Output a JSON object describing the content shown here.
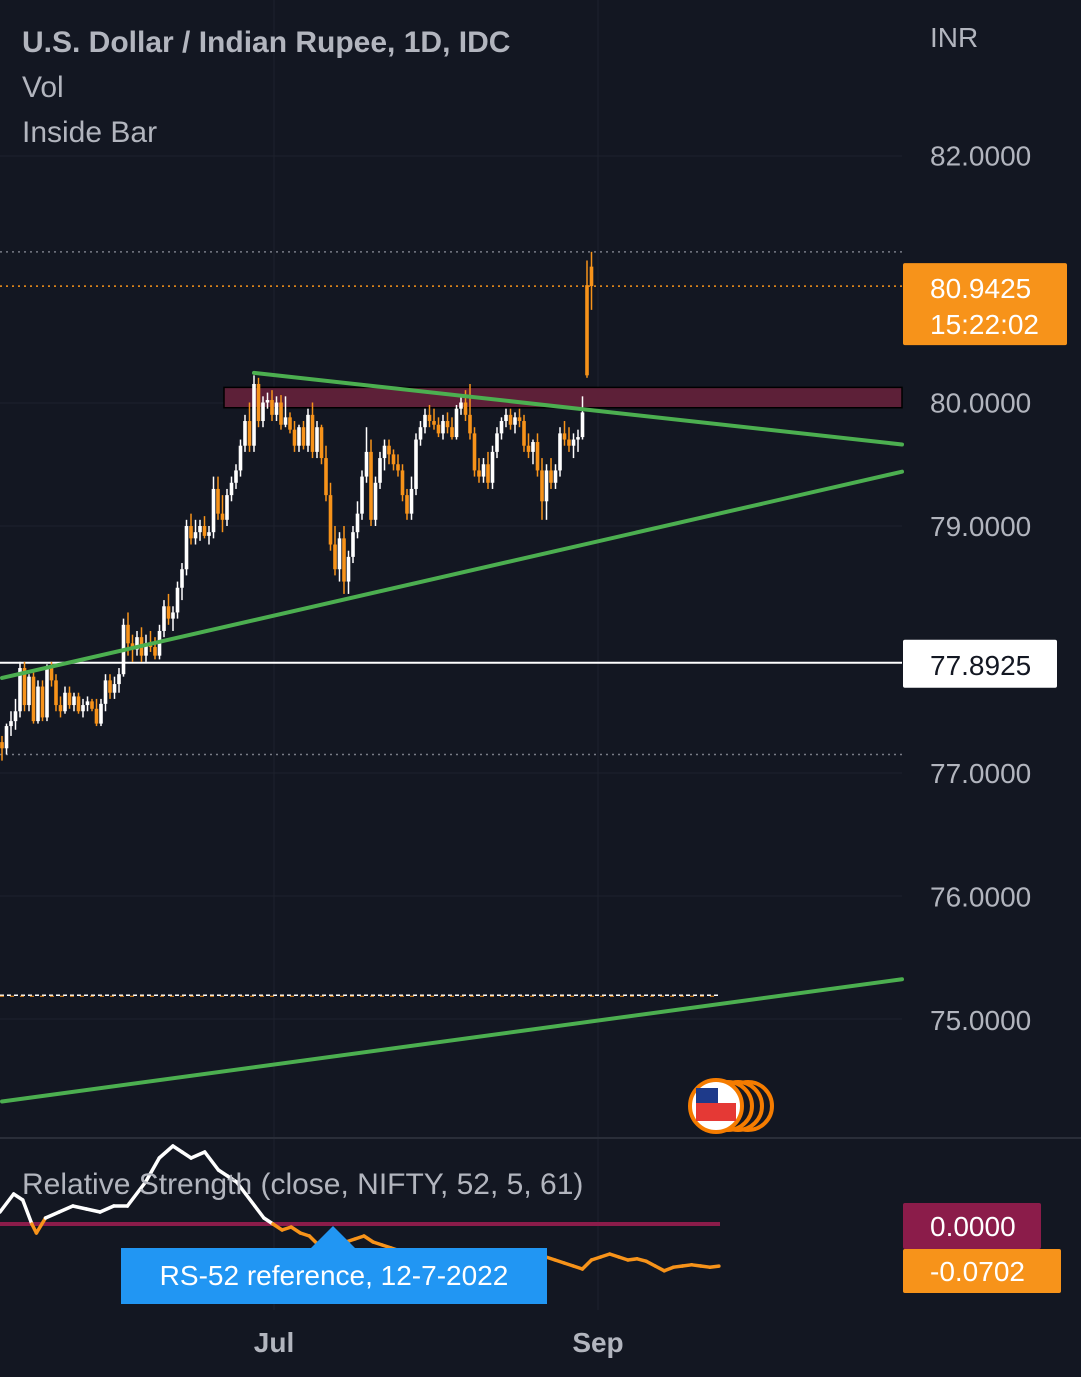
{
  "header": {
    "title": "U.S. Dollar / Indian Rupee, 1D, IDC",
    "vol_label": "Vol",
    "indicator_label": "Inside Bar",
    "currency": "INR"
  },
  "price_axis": {
    "ticks": [
      "82.0000",
      "80.0000",
      "79.0000",
      "77.0000",
      "76.0000",
      "75.0000"
    ],
    "last_price": "80.9425",
    "countdown": "15:22:02",
    "level_label": "77.8925"
  },
  "time_axis": {
    "ticks": [
      "Jul",
      "Sep"
    ]
  },
  "rs_panel": {
    "title": "Relative Strength (close, NIFTY, 52, 5, 61)",
    "zero_label": "0.0000",
    "value_label": "-0.0702",
    "tooltip": "RS-52 reference, 12-7-2022"
  },
  "colors": {
    "background": "#131722",
    "up_candle": "#ffffff",
    "down_candle": "#f7931a",
    "trendline": "#4caf50",
    "resistance_zone": "#5d2038",
    "rs_line_orange": "#f7931a",
    "rs_line_white": "#ffffff",
    "rs_zero_line": "#8b1c4a",
    "tooltip_bg": "#2196f3"
  },
  "chart_data": {
    "type": "candlestick",
    "symbol": "USDINR",
    "timeframe": "1D",
    "ylim": [
      74.0,
      83.3
    ],
    "levels": {
      "last_price": 80.9425,
      "horizontal_level": 77.8925,
      "resistance_zone": [
        79.99,
        80.09
      ],
      "dotted_high": 81.22,
      "dotted_low": 77.15,
      "dashed_level": 75.2
    },
    "trendlines": [
      {
        "name": "upper",
        "from": {
          "i": 56,
          "price": 80.24
        },
        "to": {
          "i": 148,
          "price": 79.66
        }
      },
      {
        "name": "lower",
        "from": {
          "i": 0,
          "price": 77.77
        },
        "to": {
          "i": 148,
          "price": 79.44
        }
      },
      {
        "name": "long",
        "from": {
          "i": 0,
          "price": 74.34
        },
        "to": {
          "i": 148,
          "price": 75.33
        }
      }
    ],
    "candles": [
      [
        77.25,
        77.3,
        77.1,
        77.2
      ],
      [
        77.2,
        77.4,
        77.15,
        77.38
      ],
      [
        77.38,
        77.5,
        77.3,
        77.42
      ],
      [
        77.42,
        77.6,
        77.35,
        77.5
      ],
      [
        77.5,
        77.9,
        77.45,
        77.85
      ],
      [
        77.85,
        77.9,
        77.5,
        77.55
      ],
      [
        77.55,
        77.8,
        77.5,
        77.78
      ],
      [
        77.78,
        77.82,
        77.4,
        77.42
      ],
      [
        77.42,
        77.75,
        77.4,
        77.7
      ],
      [
        77.7,
        77.75,
        77.42,
        77.45
      ],
      [
        77.45,
        77.88,
        77.42,
        77.85
      ],
      [
        77.85,
        77.9,
        77.7,
        77.75
      ],
      [
        77.75,
        77.8,
        77.5,
        77.55
      ],
      [
        77.55,
        77.62,
        77.45,
        77.5
      ],
      [
        77.5,
        77.7,
        77.48,
        77.65
      ],
      [
        77.65,
        77.7,
        77.52,
        77.55
      ],
      [
        77.55,
        77.65,
        77.5,
        77.62
      ],
      [
        77.62,
        77.65,
        77.48,
        77.5
      ],
      [
        77.5,
        77.6,
        77.45,
        77.55
      ],
      [
        77.55,
        77.62,
        77.5,
        77.58
      ],
      [
        77.58,
        77.6,
        77.5,
        77.52
      ],
      [
        77.52,
        77.6,
        77.38,
        77.4
      ],
      [
        77.4,
        77.6,
        77.38,
        77.56
      ],
      [
        77.56,
        77.8,
        77.5,
        77.75
      ],
      [
        77.75,
        77.8,
        77.6,
        77.65
      ],
      [
        77.65,
        77.78,
        77.6,
        77.72
      ],
      [
        77.72,
        77.85,
        77.65,
        77.8
      ],
      [
        77.8,
        78.25,
        77.78,
        78.2
      ],
      [
        78.2,
        78.3,
        77.95,
        78.05
      ],
      [
        78.05,
        78.12,
        77.9,
        78.0
      ],
      [
        78.0,
        78.15,
        77.95,
        78.1
      ],
      [
        78.1,
        78.18,
        77.9,
        77.95
      ],
      [
        77.95,
        78.12,
        77.9,
        78.05
      ],
      [
        78.05,
        78.15,
        77.98,
        78.02
      ],
      [
        78.02,
        78.1,
        77.92,
        77.95
      ],
      [
        77.95,
        78.2,
        77.92,
        78.15
      ],
      [
        78.15,
        78.4,
        78.1,
        78.35
      ],
      [
        78.35,
        78.45,
        78.2,
        78.25
      ],
      [
        78.25,
        78.35,
        78.15,
        78.3
      ],
      [
        78.3,
        78.55,
        78.25,
        78.5
      ],
      [
        78.5,
        78.7,
        78.4,
        78.65
      ],
      [
        78.65,
        79.05,
        78.6,
        79.0
      ],
      [
        79.0,
        79.1,
        78.85,
        78.9
      ],
      [
        78.9,
        79.05,
        78.85,
        78.95
      ],
      [
        78.95,
        79.05,
        78.88,
        79.0
      ],
      [
        79.0,
        79.08,
        78.9,
        78.92
      ],
      [
        78.92,
        79.0,
        78.85,
        78.95
      ],
      [
        78.95,
        79.4,
        78.9,
        79.3
      ],
      [
        79.3,
        79.4,
        79.05,
        79.1
      ],
      [
        79.1,
        79.25,
        78.95,
        79.05
      ],
      [
        79.05,
        79.3,
        79.0,
        79.25
      ],
      [
        79.25,
        79.4,
        79.2,
        79.35
      ],
      [
        79.35,
        79.5,
        79.3,
        79.45
      ],
      [
        79.45,
        79.7,
        79.4,
        79.65
      ],
      [
        79.65,
        79.9,
        79.6,
        79.85
      ],
      [
        79.85,
        80.0,
        79.6,
        79.65
      ],
      [
        79.65,
        80.22,
        79.6,
        80.15
      ],
      [
        80.15,
        80.2,
        79.8,
        79.85
      ],
      [
        79.85,
        80.05,
        79.8,
        80.0
      ],
      [
        80.0,
        80.08,
        79.95,
        80.02
      ],
      [
        80.02,
        80.1,
        79.85,
        79.9
      ],
      [
        79.9,
        80.05,
        79.85,
        80.0
      ],
      [
        80.0,
        80.06,
        79.78,
        79.82
      ],
      [
        79.82,
        80.05,
        79.8,
        79.88
      ],
      [
        79.88,
        79.92,
        79.75,
        79.78
      ],
      [
        79.78,
        79.85,
        79.6,
        79.65
      ],
      [
        79.65,
        79.82,
        79.6,
        79.8
      ],
      [
        79.8,
        79.85,
        79.62,
        79.65
      ],
      [
        79.65,
        79.95,
        79.6,
        79.9
      ],
      [
        79.9,
        80.0,
        79.55,
        79.6
      ],
      [
        79.6,
        79.85,
        79.55,
        79.8
      ],
      [
        79.8,
        79.82,
        79.5,
        79.55
      ],
      [
        79.55,
        79.65,
        79.2,
        79.25
      ],
      [
        79.25,
        79.35,
        78.8,
        78.85
      ],
      [
        78.85,
        79.0,
        78.6,
        78.65
      ],
      [
        78.65,
        78.95,
        78.55,
        78.9
      ],
      [
        78.9,
        79.0,
        78.45,
        78.55
      ],
      [
        78.55,
        78.8,
        78.45,
        78.75
      ],
      [
        78.75,
        79.0,
        78.7,
        78.95
      ],
      [
        78.95,
        79.2,
        78.9,
        79.1
      ],
      [
        79.1,
        79.45,
        79.05,
        79.4
      ],
      [
        79.4,
        79.8,
        79.35,
        79.6
      ],
      [
        79.6,
        79.7,
        79.0,
        79.05
      ],
      [
        79.05,
        79.4,
        79.0,
        79.35
      ],
      [
        79.35,
        79.6,
        79.3,
        79.55
      ],
      [
        79.55,
        79.7,
        79.45,
        79.65
      ],
      [
        79.65,
        79.7,
        79.5,
        79.58
      ],
      [
        79.58,
        79.62,
        79.45,
        79.5
      ],
      [
        79.5,
        79.58,
        79.4,
        79.45
      ],
      [
        79.45,
        79.5,
        79.2,
        79.25
      ],
      [
        79.25,
        79.3,
        79.05,
        79.1
      ],
      [
        79.1,
        79.4,
        79.05,
        79.3
      ],
      [
        79.3,
        79.75,
        79.25,
        79.7
      ],
      [
        79.7,
        79.85,
        79.65,
        79.8
      ],
      [
        79.8,
        79.95,
        79.75,
        79.9
      ],
      [
        79.9,
        79.98,
        79.8,
        79.85
      ],
      [
        79.85,
        79.95,
        79.78,
        79.82
      ],
      [
        79.82,
        79.88,
        79.72,
        79.75
      ],
      [
        79.75,
        79.9,
        79.7,
        79.85
      ],
      [
        79.85,
        79.92,
        79.75,
        79.8
      ],
      [
        79.8,
        79.88,
        79.7,
        79.72
      ],
      [
        79.72,
        79.98,
        79.7,
        79.95
      ],
      [
        79.95,
        80.05,
        79.9,
        80.0
      ],
      [
        80.0,
        80.1,
        79.85,
        79.9
      ],
      [
        79.9,
        80.15,
        79.7,
        79.75
      ],
      [
        79.75,
        79.8,
        79.4,
        79.45
      ],
      [
        79.45,
        79.55,
        79.35,
        79.4
      ],
      [
        79.4,
        79.55,
        79.35,
        79.5
      ],
      [
        79.5,
        79.6,
        79.3,
        79.35
      ],
      [
        79.35,
        79.65,
        79.3,
        79.6
      ],
      [
        79.6,
        79.8,
        79.55,
        79.75
      ],
      [
        79.75,
        79.88,
        79.7,
        79.85
      ],
      [
        79.85,
        79.95,
        79.8,
        79.9
      ],
      [
        79.9,
        79.95,
        79.78,
        79.82
      ],
      [
        79.82,
        79.92,
        79.75,
        79.88
      ],
      [
        79.88,
        79.95,
        79.8,
        79.85
      ],
      [
        79.85,
        79.9,
        79.6,
        79.65
      ],
      [
        79.65,
        79.75,
        79.55,
        79.6
      ],
      [
        79.6,
        79.7,
        79.5,
        79.68
      ],
      [
        79.68,
        79.75,
        79.4,
        79.45
      ],
      [
        79.45,
        79.55,
        79.05,
        79.2
      ],
      [
        79.2,
        79.5,
        79.05,
        79.45
      ],
      [
        79.45,
        79.55,
        79.3,
        79.35
      ],
      [
        79.35,
        79.5,
        79.3,
        79.45
      ],
      [
        79.45,
        79.8,
        79.4,
        79.75
      ],
      [
        79.75,
        79.85,
        79.65,
        79.7
      ],
      [
        79.7,
        79.8,
        79.6,
        79.65
      ],
      [
        79.65,
        79.75,
        79.55,
        79.7
      ],
      [
        79.7,
        79.78,
        79.6,
        79.72
      ],
      [
        79.72,
        80.05,
        79.7,
        79.92
      ],
      [
        80.95,
        81.15,
        80.2,
        80.22
      ],
      [
        81.1,
        81.22,
        80.75,
        80.9425
      ]
    ],
    "rs_line": [
      [
        0,
        0.02
      ],
      [
        3,
        0.05
      ],
      [
        5,
        0.04
      ],
      [
        7,
        0.0
      ],
      [
        8,
        -0.015
      ],
      [
        10,
        0.01
      ],
      [
        13,
        0.02
      ],
      [
        16,
        0.03
      ],
      [
        19,
        0.025
      ],
      [
        22,
        0.02
      ],
      [
        25,
        0.03
      ],
      [
        28,
        0.03
      ],
      [
        32,
        0.07
      ],
      [
        35,
        0.11
      ],
      [
        38,
        0.13
      ],
      [
        40,
        0.12
      ],
      [
        42,
        0.11
      ],
      [
        45,
        0.12
      ],
      [
        48,
        0.09
      ],
      [
        50,
        0.08
      ],
      [
        52,
        0.07
      ],
      [
        54,
        0.05
      ],
      [
        56,
        0.03
      ],
      [
        58,
        0.01
      ],
      [
        60,
        0.0
      ],
      [
        62,
        -0.01
      ],
      [
        64,
        -0.005
      ],
      [
        66,
        -0.015
      ],
      [
        68,
        -0.02
      ],
      [
        70,
        -0.035
      ],
      [
        72,
        -0.03
      ],
      [
        74,
        -0.035
      ],
      [
        76,
        -0.03
      ],
      [
        78,
        -0.025
      ],
      [
        80,
        -0.02
      ],
      [
        82,
        -0.03
      ],
      [
        84,
        -0.035
      ],
      [
        86,
        -0.04
      ],
      [
        88,
        -0.045
      ],
      [
        90,
        -0.05
      ],
      [
        92,
        -0.07
      ],
      [
        94,
        -0.085
      ],
      [
        96,
        -0.08
      ],
      [
        98,
        -0.075
      ],
      [
        100,
        -0.07
      ],
      [
        102,
        -0.075
      ],
      [
        104,
        -0.08
      ],
      [
        106,
        -0.09
      ],
      [
        108,
        -0.085
      ],
      [
        110,
        -0.08
      ],
      [
        112,
        -0.075
      ],
      [
        114,
        -0.07
      ],
      [
        116,
        -0.065
      ],
      [
        118,
        -0.06
      ],
      [
        120,
        -0.055
      ],
      [
        122,
        -0.06
      ],
      [
        124,
        -0.065
      ],
      [
        126,
        -0.07
      ],
      [
        128,
        -0.075
      ],
      [
        130,
        -0.06
      ],
      [
        132,
        -0.055
      ],
      [
        134,
        -0.05
      ],
      [
        136,
        -0.055
      ],
      [
        138,
        -0.06
      ],
      [
        140,
        -0.058
      ],
      [
        142,
        -0.062
      ],
      [
        144,
        -0.07
      ],
      [
        146,
        -0.078
      ],
      [
        148,
        -0.072
      ],
      [
        150,
        -0.07
      ],
      [
        152,
        -0.068
      ],
      [
        154,
        -0.07
      ],
      [
        156,
        -0.072
      ],
      [
        158,
        -0.0702
      ]
    ]
  }
}
